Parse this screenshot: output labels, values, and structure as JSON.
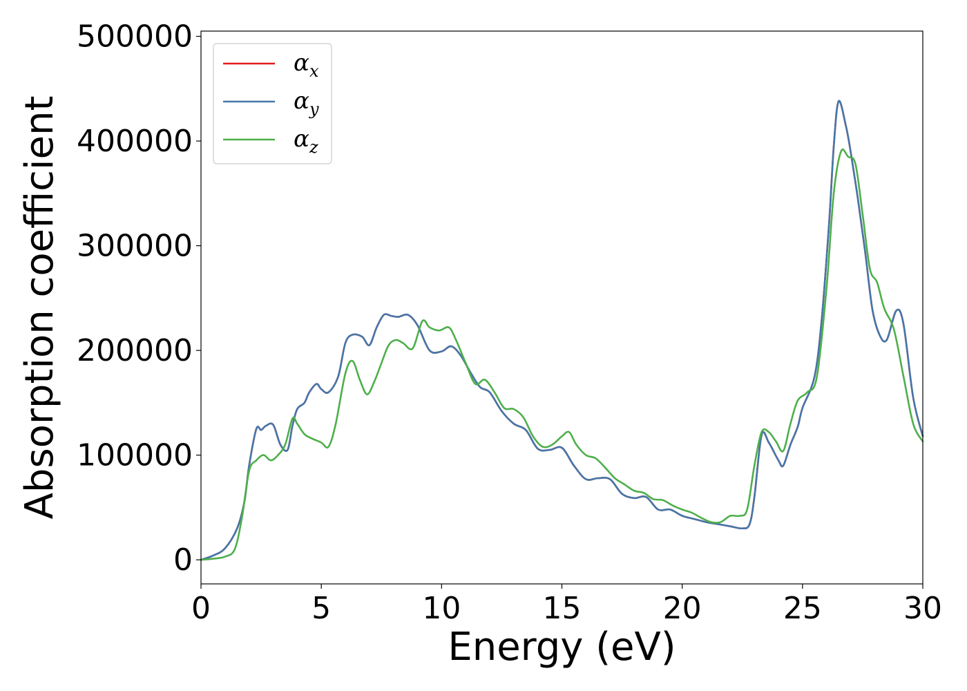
{
  "chart_data": {
    "type": "line",
    "title": "",
    "xlabel": "Energy (eV)",
    "ylabel": "Absorption coefficient",
    "xlim": [
      0,
      30
    ],
    "ylim": [
      -23000,
      505000
    ],
    "xticks": [
      0,
      5,
      10,
      15,
      20,
      25,
      30
    ],
    "yticks": [
      0,
      100000,
      200000,
      300000,
      400000,
      500000
    ],
    "grid": false,
    "legend_position": "top-left",
    "series": [
      {
        "name": "α",
        "subscript": "x",
        "color": "#e41a1c",
        "x": [
          0,
          0.5,
          1.0,
          1.5,
          1.8,
          2.0,
          2.3,
          2.5,
          2.7,
          3.0,
          3.3,
          3.6,
          3.8,
          4.0,
          4.3,
          4.5,
          4.8,
          5.0,
          5.3,
          5.7,
          6.0,
          6.3,
          6.7,
          7.0,
          7.3,
          7.6,
          7.9,
          8.2,
          8.6,
          9.0,
          9.5,
          10.0,
          10.4,
          10.8,
          11.2,
          11.6,
          12.0,
          12.5,
          13.0,
          13.5,
          14.0,
          14.5,
          15.0,
          15.5,
          16.0,
          16.5,
          17.0,
          17.5,
          18.0,
          18.5,
          19.0,
          19.5,
          20.0,
          20.5,
          21.0,
          21.5,
          22.0,
          22.5,
          22.8,
          23.0,
          23.3,
          23.6,
          24.0,
          24.2,
          24.5,
          24.8,
          25.0,
          25.5,
          25.8,
          26.1,
          26.3,
          26.5,
          26.8,
          27.0,
          27.3,
          27.6,
          27.9,
          28.2,
          28.5,
          28.9,
          29.2,
          29.6,
          30.0
        ],
        "y": [
          0,
          4000,
          11000,
          30000,
          55000,
          90000,
          125000,
          124000,
          128000,
          129000,
          110000,
          105000,
          128000,
          144000,
          150000,
          160000,
          168000,
          163000,
          160000,
          175000,
          207000,
          215000,
          213000,
          205000,
          222000,
          234000,
          233000,
          232000,
          234000,
          224000,
          200000,
          199000,
          204000,
          195000,
          179000,
          165000,
          160000,
          142000,
          130000,
          124000,
          106000,
          105000,
          107000,
          90000,
          77000,
          78000,
          77000,
          63000,
          59000,
          60000,
          48000,
          48000,
          42000,
          39000,
          36000,
          34000,
          32000,
          30000,
          34000,
          60000,
          119000,
          112000,
          95000,
          90000,
          110000,
          127000,
          145000,
          175000,
          230000,
          320000,
          395000,
          438000,
          415000,
          390000,
          345000,
          295000,
          240000,
          215000,
          210000,
          238000,
          225000,
          155000,
          118000
        ]
      },
      {
        "name": "α",
        "subscript": "y",
        "color": "#4477aa",
        "x": [
          0,
          0.5,
          1.0,
          1.5,
          1.8,
          2.0,
          2.3,
          2.5,
          2.7,
          3.0,
          3.3,
          3.6,
          3.8,
          4.0,
          4.3,
          4.5,
          4.8,
          5.0,
          5.3,
          5.7,
          6.0,
          6.3,
          6.7,
          7.0,
          7.3,
          7.6,
          7.9,
          8.2,
          8.6,
          9.0,
          9.5,
          10.0,
          10.4,
          10.8,
          11.2,
          11.6,
          12.0,
          12.5,
          13.0,
          13.5,
          14.0,
          14.5,
          15.0,
          15.5,
          16.0,
          16.5,
          17.0,
          17.5,
          18.0,
          18.5,
          19.0,
          19.5,
          20.0,
          20.5,
          21.0,
          21.5,
          22.0,
          22.5,
          22.8,
          23.0,
          23.3,
          23.6,
          24.0,
          24.2,
          24.5,
          24.8,
          25.0,
          25.5,
          25.8,
          26.1,
          26.3,
          26.5,
          26.8,
          27.0,
          27.3,
          27.6,
          27.9,
          28.2,
          28.5,
          28.9,
          29.2,
          29.6,
          30.0
        ],
        "y": [
          0,
          4000,
          11000,
          30000,
          55000,
          90000,
          125000,
          124000,
          128000,
          129000,
          110000,
          105000,
          128000,
          144000,
          150000,
          160000,
          168000,
          163000,
          160000,
          175000,
          207000,
          215000,
          213000,
          205000,
          222000,
          234000,
          233000,
          232000,
          234000,
          224000,
          200000,
          199000,
          204000,
          195000,
          179000,
          165000,
          160000,
          142000,
          130000,
          124000,
          106000,
          105000,
          107000,
          90000,
          77000,
          78000,
          77000,
          63000,
          59000,
          60000,
          48000,
          48000,
          42000,
          39000,
          36000,
          34000,
          32000,
          30000,
          34000,
          60000,
          119000,
          112000,
          95000,
          90000,
          110000,
          127000,
          145000,
          175000,
          230000,
          320000,
          395000,
          438000,
          415000,
          390000,
          345000,
          295000,
          240000,
          215000,
          210000,
          238000,
          225000,
          155000,
          118000
        ]
      },
      {
        "name": "α",
        "subscript": "z",
        "color": "#4daf4a",
        "x": [
          0,
          0.5,
          1.0,
          1.4,
          1.7,
          2.0,
          2.3,
          2.6,
          2.9,
          3.2,
          3.5,
          3.8,
          4.0,
          4.3,
          4.6,
          5.0,
          5.3,
          5.6,
          6.0,
          6.3,
          6.6,
          6.9,
          7.2,
          7.5,
          7.8,
          8.1,
          8.4,
          8.8,
          9.2,
          9.5,
          9.9,
          10.3,
          10.6,
          11.0,
          11.4,
          11.8,
          12.2,
          12.6,
          13.0,
          13.4,
          13.8,
          14.2,
          14.6,
          15.0,
          15.3,
          15.6,
          16.0,
          16.4,
          16.8,
          17.2,
          17.6,
          18.0,
          18.4,
          18.8,
          19.2,
          19.6,
          20.0,
          20.4,
          20.8,
          21.2,
          21.6,
          22.0,
          22.4,
          22.7,
          23.0,
          23.3,
          23.6,
          23.9,
          24.2,
          24.5,
          24.8,
          25.2,
          25.6,
          26.0,
          26.3,
          26.6,
          26.9,
          27.2,
          27.5,
          27.8,
          28.1,
          28.4,
          28.8,
          29.2,
          29.6,
          30.0
        ],
        "y": [
          0,
          1000,
          3000,
          10000,
          40000,
          85000,
          95000,
          100000,
          95000,
          100000,
          110000,
          135000,
          130000,
          120000,
          116000,
          112000,
          108000,
          130000,
          178000,
          190000,
          172000,
          158000,
          170000,
          188000,
          205000,
          210000,
          207000,
          202000,
          228000,
          222000,
          219000,
          222000,
          210000,
          188000,
          168000,
          172000,
          160000,
          145000,
          144000,
          136000,
          118000,
          108000,
          110000,
          118000,
          122000,
          110000,
          100000,
          97000,
          88000,
          78000,
          72000,
          66000,
          64000,
          58000,
          57000,
          52000,
          48000,
          45000,
          40000,
          36000,
          36000,
          42000,
          42000,
          48000,
          90000,
          122000,
          122000,
          113000,
          104000,
          130000,
          152000,
          160000,
          175000,
          260000,
          350000,
          390000,
          385000,
          378000,
          330000,
          278000,
          265000,
          240000,
          220000,
          175000,
          130000,
          113000
        ]
      }
    ]
  }
}
